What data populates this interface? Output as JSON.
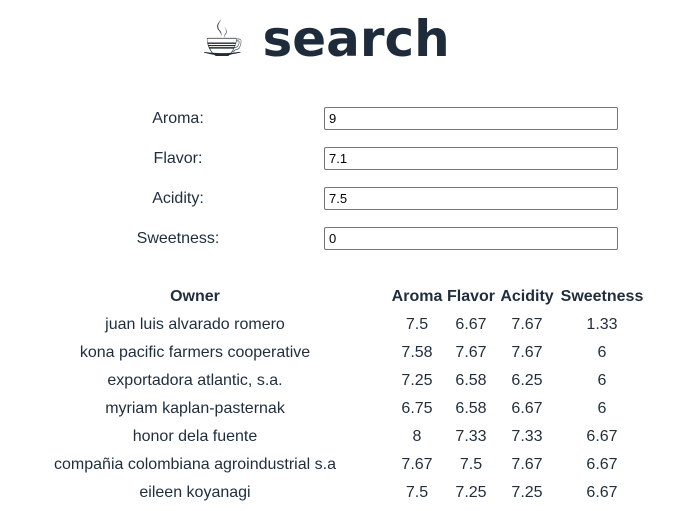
{
  "header": {
    "title": "☕ search"
  },
  "form": {
    "fields": [
      {
        "label": "Aroma:",
        "value": "9"
      },
      {
        "label": "Flavor:",
        "value": "7.1"
      },
      {
        "label": "Acidity:",
        "value": "7.5"
      },
      {
        "label": "Sweetness:",
        "value": "0"
      }
    ]
  },
  "table": {
    "columns": [
      "Owner",
      "Aroma",
      "Flavor",
      "Acidity",
      "Sweetness"
    ],
    "rows": [
      [
        "juan luis alvarado romero",
        7.5,
        6.67,
        7.67,
        1.33
      ],
      [
        "kona pacific farmers cooperative",
        7.58,
        7.67,
        7.67,
        6
      ],
      [
        "exportadora atlantic, s.a.",
        7.25,
        6.58,
        6.25,
        6
      ],
      [
        "myriam kaplan-pasternak",
        6.75,
        6.58,
        6.67,
        6
      ],
      [
        "honor dela fuente",
        8,
        7.33,
        7.33,
        6.67
      ],
      [
        "compañia colombiana agroindustrial s.a",
        7.67,
        7.5,
        7.67,
        6.67
      ],
      [
        "eileen koyanagi",
        7.5,
        7.25,
        7.25,
        6.67
      ]
    ]
  }
}
